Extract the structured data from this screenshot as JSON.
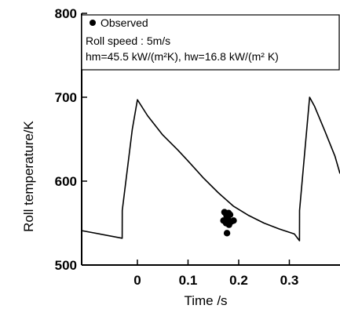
{
  "chart_data": {
    "type": "line",
    "xlabel": "Time /s",
    "ylabel": "Roll temperature/K",
    "xlim": [
      -0.11,
      0.4
    ],
    "ylim": [
      500,
      800
    ],
    "x_ticks": [
      0,
      0.1,
      0.2,
      0.3
    ],
    "x_tick_labels": [
      "0",
      "0.1",
      "0.2",
      "0.3"
    ],
    "y_ticks": [
      500,
      600,
      700,
      800
    ],
    "y_tick_labels": [
      "500",
      "600",
      "700",
      "800"
    ],
    "legend": {
      "placement": "top",
      "entries": [
        {
          "marker": "filled-circle",
          "label": "Observed"
        }
      ]
    },
    "annotations": [
      "Roll speed : 5m/s",
      "hm=45.5 kW/(m²K), hw=16.8 kW/(m² K)"
    ],
    "series": [
      {
        "kind": "line",
        "x": [
          -0.11,
          -0.03,
          -0.0299,
          -0.01,
          0.0,
          0.02,
          0.05,
          0.08,
          0.1,
          0.13,
          0.16,
          0.19,
          0.22,
          0.25,
          0.28,
          0.31,
          0.32,
          0.3201,
          0.34,
          0.35,
          0.37,
          0.39,
          0.4
        ],
        "y": [
          541,
          532,
          565,
          662,
          697,
          678,
          655,
          637,
          624,
          604,
          586,
          570,
          559,
          550,
          543,
          537,
          529,
          565,
          700,
          689,
          660,
          630,
          609
        ]
      },
      {
        "kind": "scatter",
        "name": "Observed",
        "x": [
          0.172,
          0.18,
          0.176,
          0.183,
          0.178,
          0.17,
          0.186,
          0.175,
          0.181,
          0.19,
          0.177
        ],
        "y": [
          563,
          562,
          559,
          560,
          556,
          553,
          552,
          550,
          548,
          553,
          538
        ]
      }
    ]
  }
}
